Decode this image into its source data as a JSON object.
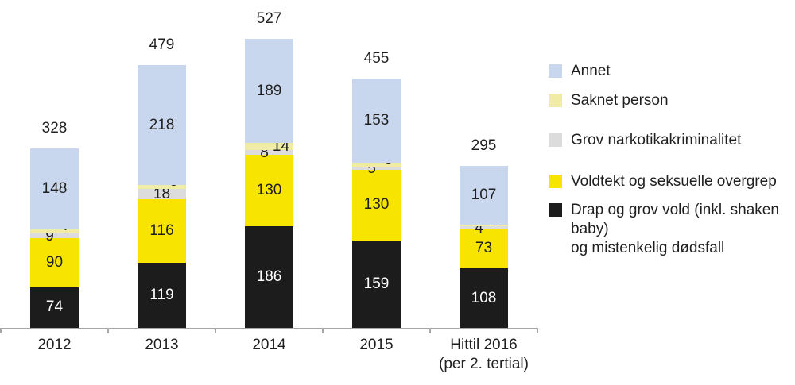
{
  "chart_data": {
    "type": "bar",
    "stacked": true,
    "title": "",
    "xlabel": "",
    "ylabel": "",
    "grid": false,
    "legend_position": "right",
    "ylim": [
      0,
      550
    ],
    "categories": [
      [
        "2012"
      ],
      [
        "2013"
      ],
      [
        "2014"
      ],
      [
        "2015"
      ],
      [
        "Hittil 2016",
        "(per 2. tertial)"
      ]
    ],
    "totals": [
      328,
      479,
      527,
      455,
      295
    ],
    "series": [
      {
        "name": "Drap og grov vold (inkl. shaken baby) og mistenkelig dødsfall",
        "color": "#1c1c1c",
        "label_color": "#ffffff",
        "label_mode": "center",
        "values": [
          74,
          119,
          186,
          159,
          108
        ]
      },
      {
        "name": "Voldtekt og seksuelle overgrep",
        "color": "#f7e400",
        "label_color": "#1f1f1f",
        "label_mode": "center",
        "values": [
          90,
          116,
          130,
          130,
          73
        ]
      },
      {
        "name": "Grov narkotikakriminalitet",
        "color": "#dcdcdc",
        "label_color": "#1f1f1f",
        "label_mode": "offset-left",
        "values": [
          9,
          18,
          8,
          5,
          4
        ]
      },
      {
        "name": "Saknet person",
        "color": "#f1eca3",
        "label_color": "#1f1f1f",
        "label_mode": "offset-right",
        "values": [
          7,
          8,
          14,
          8,
          3
        ]
      },
      {
        "name": "Annet",
        "color": "#c9d7ee",
        "label_color": "#1f1f1f",
        "label_mode": "center",
        "values": [
          148,
          218,
          189,
          153,
          107
        ]
      }
    ],
    "legend": [
      {
        "lines": [
          "Annet"
        ],
        "color": "#c9d7ee"
      },
      {
        "lines": [
          "Saknet person"
        ],
        "color": "#f1eca3"
      },
      {
        "lines": [
          "Grov narkotikakriminalitet"
        ],
        "color": "#dcdcdc"
      },
      {
        "lines": [
          "Voldtekt og seksuelle overgrep"
        ],
        "color": "#f7e400"
      },
      {
        "lines": [
          "Drap og grov vold (inkl. shaken baby)",
          "og mistenkelig dødsfall"
        ],
        "color": "#1c1c1c"
      }
    ]
  }
}
